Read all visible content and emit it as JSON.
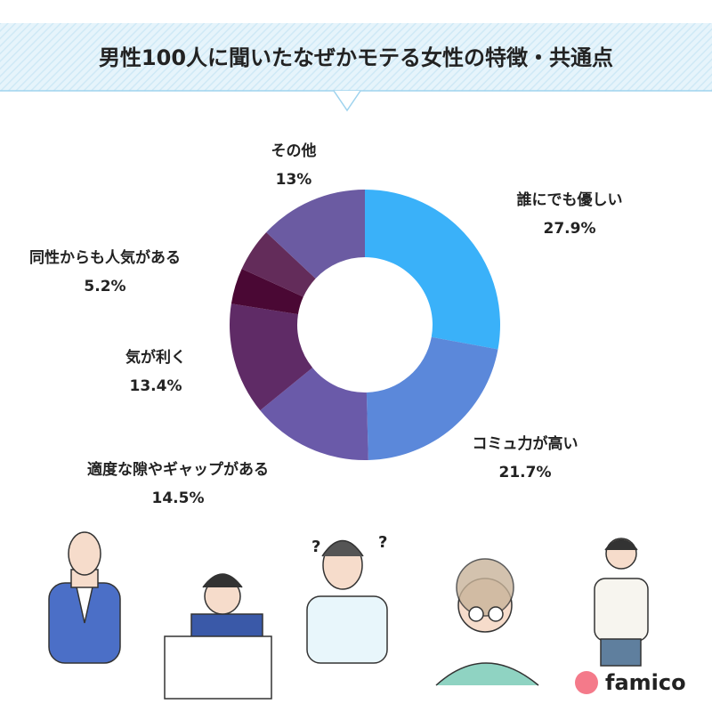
{
  "chart_data": {
    "type": "donut",
    "title": "男性100人に聞いたなぜかモテる女性の特徴・共通点",
    "categories": [
      "誰にでも優しい",
      "コミュ力が高い",
      "適度な隙やギャップがある",
      "気が利く",
      null,
      "同性からも人気がある",
      "その他"
    ],
    "values": [
      27.9,
      21.7,
      14.5,
      13.4,
      4.3,
      5.2,
      13
    ],
    "value_labels": [
      "27.9%",
      "21.7%",
      "14.5%",
      "13.4%",
      null,
      "5.2%",
      "13%"
    ],
    "colors": [
      "#3ab1f9",
      "#5b88da",
      "#6a5aa9",
      "#5f2b66",
      "#4a0834",
      "#632c5a",
      "#6b5ba2"
    ]
  },
  "brand": "famico"
}
